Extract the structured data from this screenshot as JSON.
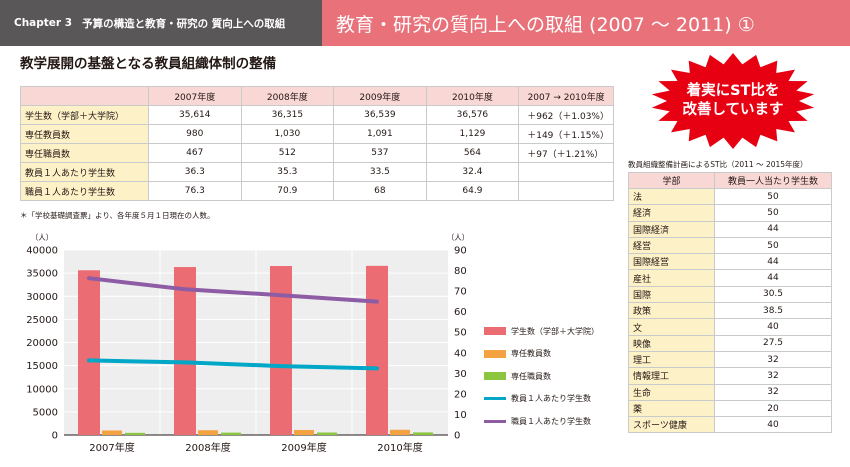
{
  "header": {
    "chapter": "Chapter 3",
    "chapter_title": "予算の構造と教育・研究の 質向上への取組",
    "page_title": "教育・研究の質向上への取組 (2007 ～ 2011) ①"
  },
  "section_title": "教学展開の基盤となる教員組織体制の整備",
  "badge": {
    "line1": "着実にST比を",
    "line2": "改善しています",
    "color": "#e60012"
  },
  "main_table": {
    "headers": [
      "",
      "2007年度",
      "2008年度",
      "2009年度",
      "2010年度",
      "2007 → 2010年度"
    ],
    "rows": [
      {
        "label": "学生数（学部＋大学院）",
        "values": [
          "35,614",
          "36,315",
          "36,539",
          "36,576"
        ],
        "change": "＋962（＋1.03%）"
      },
      {
        "label": "専任教員数",
        "values": [
          "980",
          "1,030",
          "1,091",
          "1,129"
        ],
        "change": "＋149（＋1.15%）"
      },
      {
        "label": "専任職員数",
        "values": [
          "467",
          "512",
          "537",
          "564"
        ],
        "change": "＋97（＋1.21%）"
      },
      {
        "label": "教員１人あたり学生数",
        "values": [
          "36.3",
          "35.3",
          "33.5",
          "32.4"
        ],
        "change": ""
      },
      {
        "label": "職員１人あたり学生数",
        "values": [
          "76.3",
          "70.9",
          "68",
          "64.9"
        ],
        "change": ""
      }
    ],
    "note": "＊「学校基礎調査票」より、各年度５月１日現在の人数。"
  },
  "chart_data": {
    "type": "bar",
    "categories": [
      "2007年度",
      "2008年度",
      "2009年度",
      "2010年度"
    ],
    "left_axis": {
      "unit": "（人）",
      "ylim": [
        0,
        40000
      ],
      "ticks": [
        0,
        5000,
        10000,
        15000,
        20000,
        25000,
        30000,
        35000,
        40000
      ]
    },
    "right_axis": {
      "unit": "（人）",
      "ylim": [
        0,
        90
      ],
      "ticks": [
        0,
        10,
        20,
        30,
        40,
        50,
        60,
        70,
        80,
        90
      ]
    },
    "series": [
      {
        "name": "学生数（学部＋大学院）",
        "kind": "bar",
        "axis": "left",
        "color": "#eb6d73",
        "values": [
          35614,
          36315,
          36539,
          36576
        ]
      },
      {
        "name": "専任教員数",
        "kind": "bar",
        "axis": "left",
        "color": "#f3a342",
        "values": [
          980,
          1030,
          1091,
          1129
        ]
      },
      {
        "name": "専任職員数",
        "kind": "bar",
        "axis": "left",
        "color": "#8cc63f",
        "values": [
          467,
          512,
          537,
          564
        ]
      },
      {
        "name": "教員１人あたり学生数",
        "kind": "line",
        "axis": "right",
        "color": "#00a7c7",
        "values": [
          36.3,
          35.3,
          33.5,
          32.4
        ]
      },
      {
        "name": "職員１人あたり学生数",
        "kind": "line",
        "axis": "right",
        "color": "#8e5ca5",
        "values": [
          76.3,
          70.9,
          68,
          64.9
        ]
      }
    ],
    "grid": true,
    "legend": "right"
  },
  "st_table": {
    "caption": "教員組織整備計画によるST比（2011 ～ 2015年度）",
    "headers": [
      "学部",
      "教員一人当たり学生数"
    ],
    "rows": [
      {
        "faculty": "法",
        "value": "50"
      },
      {
        "faculty": "経済",
        "value": "50"
      },
      {
        "faculty": "国際経済",
        "value": "44"
      },
      {
        "faculty": "経営",
        "value": "50"
      },
      {
        "faculty": "国際経営",
        "value": "44"
      },
      {
        "faculty": "産社",
        "value": "44"
      },
      {
        "faculty": "国際",
        "value": "30.5"
      },
      {
        "faculty": "政策",
        "value": "38.5"
      },
      {
        "faculty": "文",
        "value": "40"
      },
      {
        "faculty": "映像",
        "value": "27.5"
      },
      {
        "faculty": "理工",
        "value": "32"
      },
      {
        "faculty": "情報理工",
        "value": "32"
      },
      {
        "faculty": "生命",
        "value": "32"
      },
      {
        "faculty": "薬",
        "value": "20"
      },
      {
        "faculty": "スポーツ健康",
        "value": "40"
      }
    ]
  }
}
